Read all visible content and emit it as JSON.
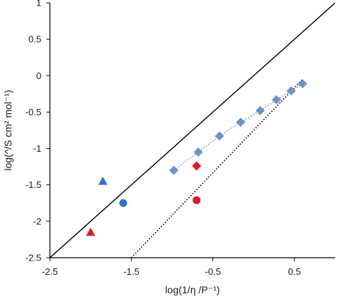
{
  "chart_data": {
    "type": "scatter",
    "title": "",
    "xlabel": "log(1/η /P⁻¹)",
    "ylabel": "log(^/S cm² mol⁻¹)",
    "xlim": [
      -2.5,
      1.0
    ],
    "ylim": [
      -2.5,
      1.0
    ],
    "x_ticks": [
      -2.5,
      -1.5,
      -0.5,
      0.5
    ],
    "x_tick_labels": [
      "-2.5",
      "-1.5",
      "-0.5",
      "0.5"
    ],
    "y_ticks": [
      1,
      0.5,
      0,
      -0.5,
      -1,
      -1.5,
      -2,
      -2.5
    ],
    "y_tick_labels": [
      "1",
      "0.5",
      "0",
      "-0.5",
      "-1",
      "-1.5",
      "-2",
      "-2.5"
    ],
    "grid": false,
    "legend": "none",
    "series": [
      {
        "marker": "diamond",
        "color": "#6f93c6",
        "connector": "dotted",
        "x": [
          -0.98,
          -0.68,
          -0.42,
          -0.16,
          0.08,
          0.28,
          0.46,
          0.6
        ],
        "y": [
          -1.3,
          -1.05,
          -0.83,
          -0.64,
          -0.48,
          -0.33,
          -0.21,
          -0.11
        ]
      },
      {
        "marker": "diamond",
        "color": "#d81e2a",
        "x": [
          -0.7
        ],
        "y": [
          -1.24
        ]
      },
      {
        "marker": "circle",
        "color": "#d81e2a",
        "x": [
          -0.7
        ],
        "y": [
          -1.71
        ]
      },
      {
        "marker": "circle",
        "color": "#2d78c4",
        "x": [
          -1.6
        ],
        "y": [
          -1.75
        ]
      },
      {
        "marker": "triangle",
        "color": "#2d78c4",
        "x": [
          -1.85
        ],
        "y": [
          -1.45
        ]
      },
      {
        "marker": "triangle",
        "color": "#d81e2a",
        "x": [
          -2.0
        ],
        "y": [
          -2.15
        ]
      }
    ],
    "reference_lines": [
      {
        "style": "solid",
        "color": "#000000",
        "x": [
          -2.5,
          1.0
        ],
        "y": [
          -2.5,
          1.0
        ]
      },
      {
        "style": "dotted",
        "color": "#000000",
        "x": [
          -1.5,
          0.6
        ],
        "y": [
          -2.5,
          -0.05
        ]
      }
    ]
  }
}
